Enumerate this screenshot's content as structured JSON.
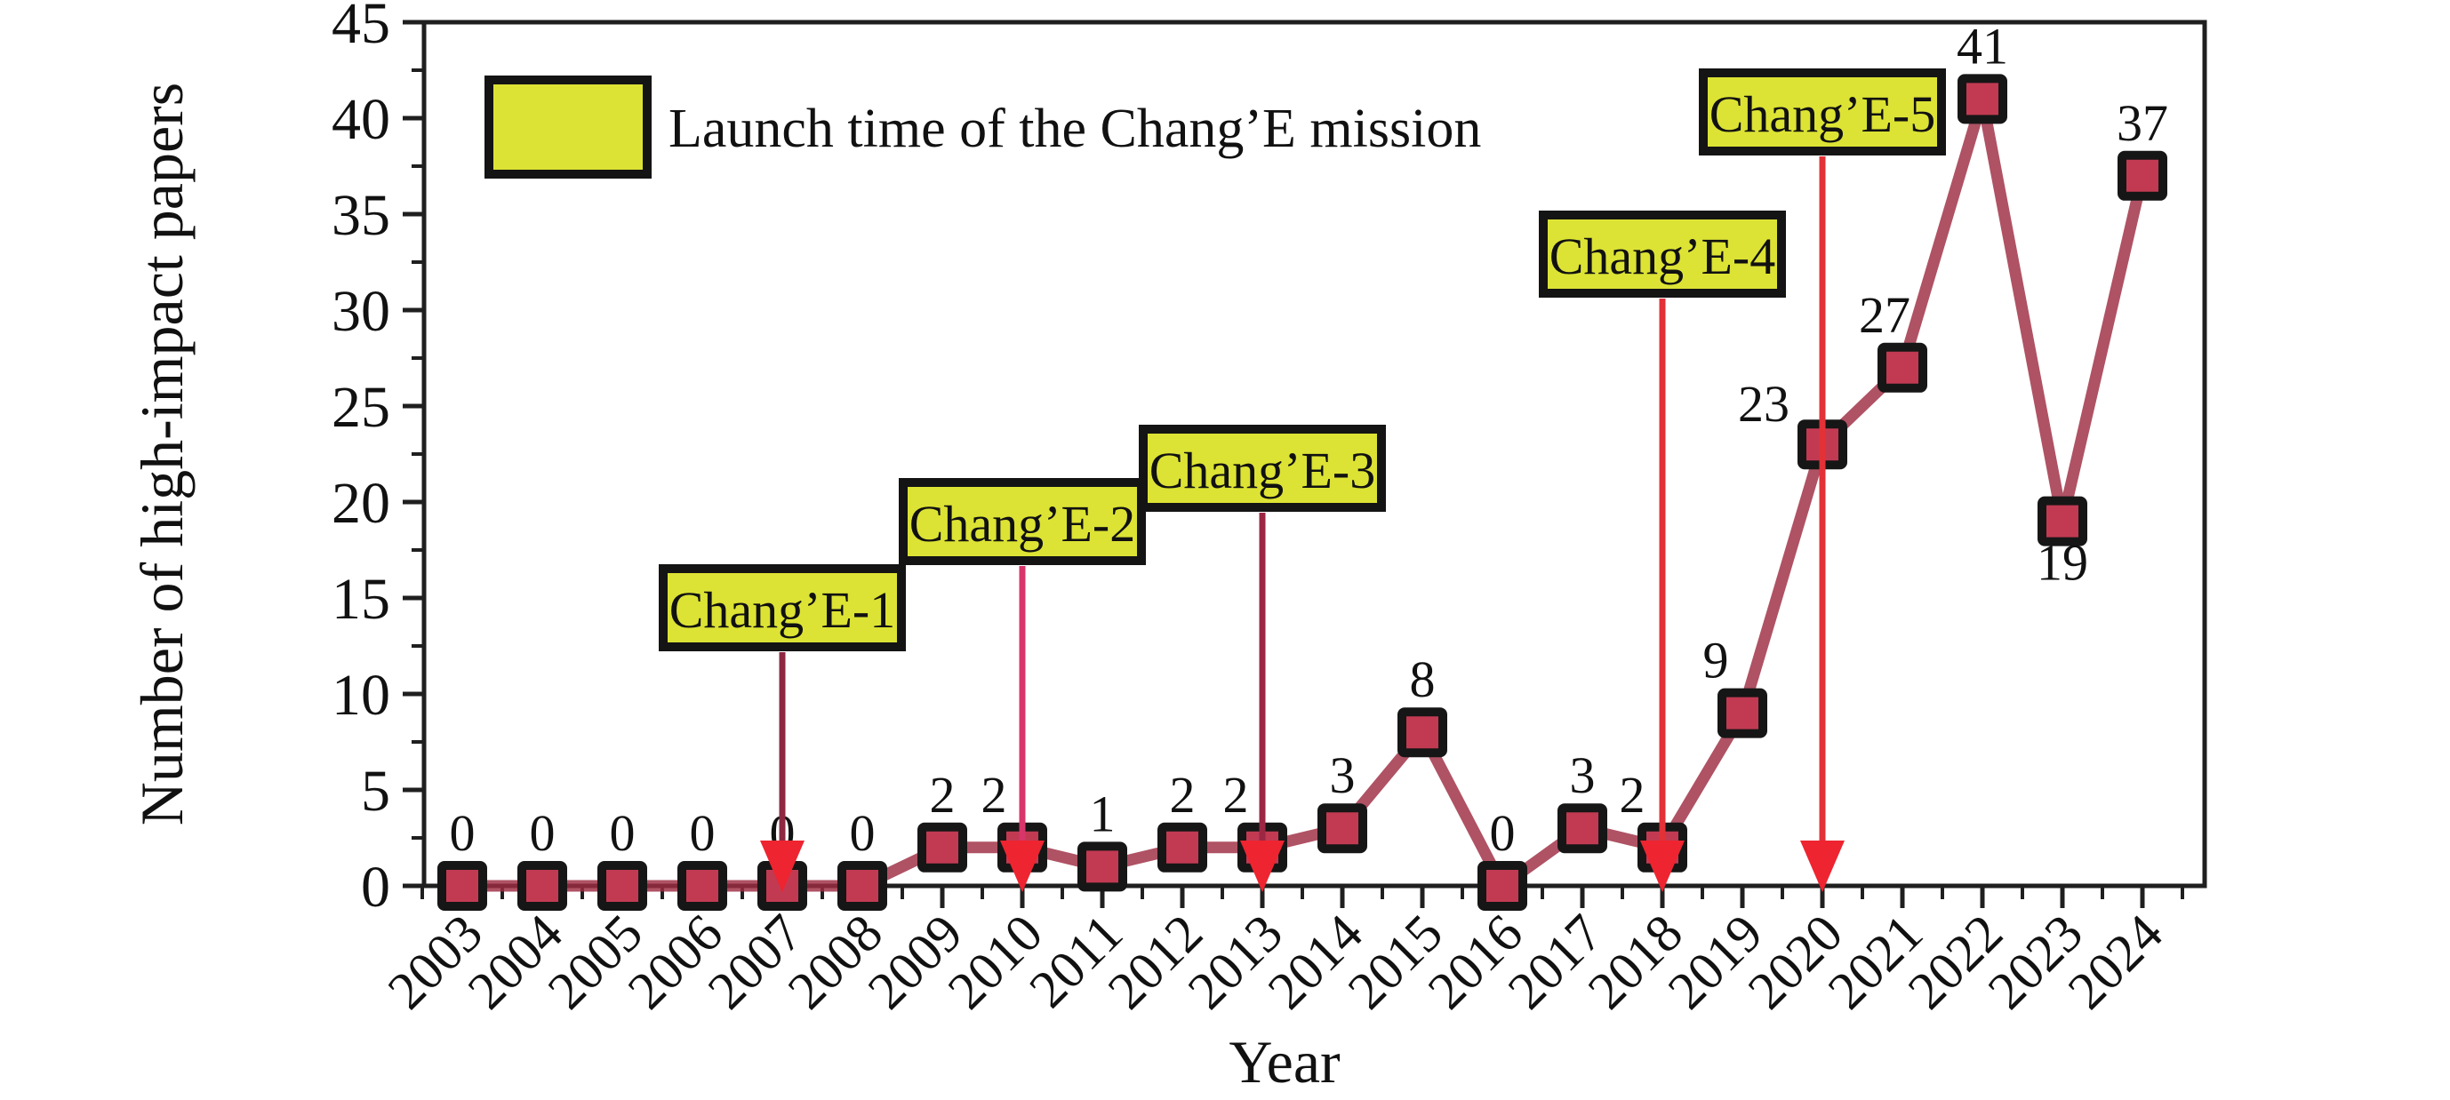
{
  "figure": {
    "background": "#ffffff",
    "axis_color": "#1f1f1f",
    "frame": true
  },
  "legend": {
    "label": "Launch time of the Chang’E mission",
    "swatch_fill": "#dce334",
    "swatch_border": "#141414"
  },
  "chart_data": {
    "type": "line",
    "title": "",
    "xlabel": "Year",
    "ylabel": "Number of high-impact papers",
    "categories": [
      "2003",
      "2004",
      "2005",
      "2006",
      "2007",
      "2008",
      "2009",
      "2010",
      "2011",
      "2012",
      "2013",
      "2014",
      "2015",
      "2016",
      "2017",
      "2018",
      "2019",
      "2020",
      "2021",
      "2022",
      "2023",
      "2024"
    ],
    "values": [
      0,
      0,
      0,
      0,
      0,
      0,
      2,
      2,
      1,
      2,
      2,
      3,
      8,
      0,
      3,
      2,
      9,
      23,
      27,
      41,
      19,
      37
    ],
    "ylim": [
      0,
      45
    ],
    "ytick_step": 5,
    "yticks": [
      0,
      5,
      10,
      15,
      20,
      25,
      30,
      35,
      40,
      45
    ],
    "grid": false,
    "legend_position": "top-left-inside",
    "line_color": "rgba(158,44,66,0.82)",
    "line_width": 13,
    "marker": "square",
    "marker_fill": "#c23a52",
    "marker_border": "#161616",
    "value_label_offsets": {
      "2010": [
        -32,
        0
      ],
      "2013": [
        -30,
        0
      ],
      "2018": [
        -34,
        0
      ],
      "2019": [
        -30,
        0
      ],
      "2020": [
        -66,
        14
      ],
      "2021": [
        -20,
        0
      ],
      "2023": [
        0,
        106
      ]
    },
    "annotations": [
      {
        "label": "Chang’E-1",
        "year": "2003",
        "target_year": "2007",
        "box_top": 640,
        "stem_color": "#8e2740"
      },
      {
        "label": "Chang’E-2",
        "year": "2010",
        "target_year": "2010",
        "box_top": 543,
        "stem_color": "#d8356a"
      },
      {
        "label": "Chang’E-3",
        "year": "2013",
        "target_year": "2013",
        "box_top": 483,
        "stem_color": "#9c2743"
      },
      {
        "label": "Chang’E-4",
        "year": "2018",
        "target_year": "2018",
        "box_top": 242,
        "stem_color": "#e23137"
      },
      {
        "label": "Chang’E-5",
        "year": "2020",
        "target_year": "2020",
        "box_top": 82,
        "stem_color": "#e23137"
      }
    ],
    "annotation_box_fill": "#dce334",
    "annotation_box_border": "#141414",
    "arrowhead_color": "#ee2430"
  }
}
